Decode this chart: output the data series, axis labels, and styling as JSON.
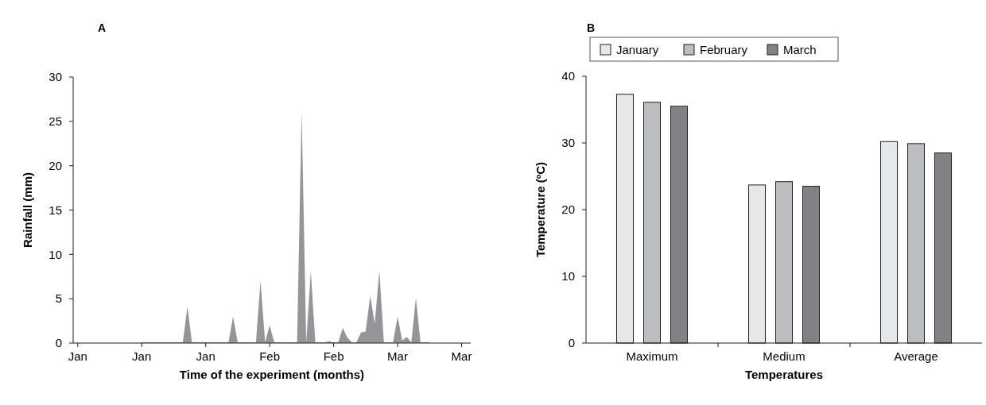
{
  "chart_data": [
    {
      "type": "area",
      "title": "A",
      "xlabel": "Time of the experiment (months)",
      "ylabel": "Rainfall (mm)",
      "series": [
        {
          "color": "#939598",
          "x": [
            "--01-16",
            "--01-22",
            "--01-25",
            "--01-26",
            "--01-27",
            "--02-01",
            "--02-04",
            "--02-05",
            "--02-06",
            "--02-10",
            "--02-11",
            "--02-12",
            "--02-13",
            "--02-14",
            "--02-17",
            "--02-19",
            "--02-20",
            "--02-21",
            "--02-22",
            "--02-23",
            "--02-25",
            "--02-26",
            "--02-27",
            "--02-28",
            "--03-01",
            "--03-02",
            "--03-03",
            "--03-04",
            "--03-05",
            "--03-06",
            "--03-07",
            "--03-08",
            "--03-09",
            "--03-10",
            "--03-12",
            "--03-13",
            "--03-14",
            "--03-15",
            "--03-16",
            "--03-17",
            "--03-18",
            "--03-20"
          ],
          "values": [
            0.1,
            0.1,
            0.1,
            4.1,
            0.1,
            0.1,
            0.1,
            3,
            0.1,
            0.1,
            7,
            0.1,
            2,
            0.1,
            0.1,
            0.1,
            26.1,
            0.1,
            8.1,
            0.1,
            0.1,
            0.2,
            0.1,
            0.1,
            1.7,
            0.6,
            0.1,
            0.1,
            1.2,
            1.3,
            5.3,
            2.2,
            8.2,
            0.1,
            0.1,
            3,
            0.3,
            0.7,
            0.1,
            5.1,
            0.1,
            0.1
          ]
        }
      ],
      "xlim": [
        "--01-01",
        "--03-29"
      ],
      "xticks": [
        {
          "value": "--01-02",
          "label": "Jan"
        },
        {
          "value": "--01-16",
          "label": "Jan"
        },
        {
          "value": "--01-30",
          "label": "Jan"
        },
        {
          "value": "--02-13",
          "label": "Feb"
        },
        {
          "value": "--02-27",
          "label": "Feb"
        },
        {
          "value": "--03-13",
          "label": "Mar"
        },
        {
          "value": "--03-27",
          "label": "Mar"
        }
      ],
      "ylim": [
        0,
        30
      ],
      "yticks": [
        0,
        5,
        10,
        15,
        20,
        25,
        30
      ],
      "grid": false,
      "legend": false
    },
    {
      "type": "bar",
      "title": "B",
      "xlabel": "Temperatures",
      "ylabel": "Temperature (ºC)",
      "categories": [
        "Maximum",
        "Medium",
        "Average"
      ],
      "series": [
        {
          "name": "January",
          "color": "#e6e7e9",
          "values": [
            37.3,
            23.7,
            30.2
          ]
        },
        {
          "name": "February",
          "color": "#bcbdc0",
          "values": [
            36.1,
            24.2,
            29.9
          ]
        },
        {
          "name": "March",
          "color": "#808285",
          "values": [
            35.5,
            23.5,
            28.5
          ]
        }
      ],
      "ylim": [
        0,
        40
      ],
      "yticks": [
        0,
        10,
        20,
        30,
        40
      ],
      "grid": false,
      "legend": "top"
    }
  ]
}
